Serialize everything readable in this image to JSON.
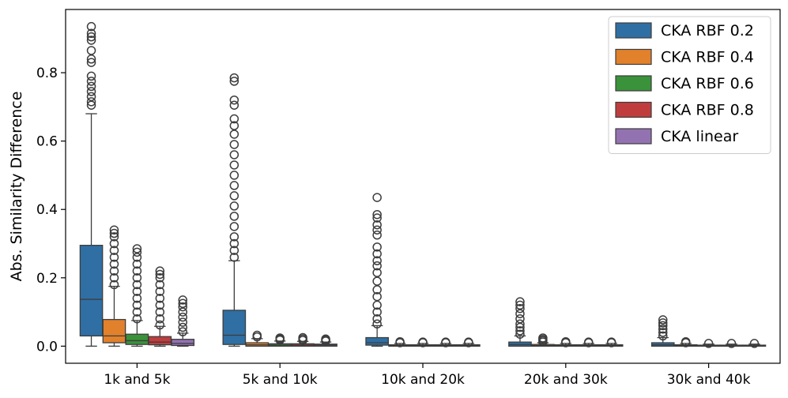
{
  "chart_data": {
    "type": "boxplot",
    "title": "",
    "xlabel": "",
    "ylabel": "Abs. Similarity Difference",
    "ylim": [
      -0.05,
      0.985
    ],
    "yticks": [
      0.0,
      0.2,
      0.4,
      0.6,
      0.8
    ],
    "ytick_labels": [
      "0.0",
      "0.2",
      "0.4",
      "0.6",
      "0.8"
    ],
    "categories": [
      "1k and 5k",
      "5k and 10k",
      "10k and 20k",
      "20k and 30k",
      "30k and 40k"
    ],
    "legend_position": "top-right",
    "grid": false,
    "series": [
      {
        "name": "CKA RBF 0.2",
        "color": "#2f6fa3",
        "boxes": [
          {
            "q1": 0.03,
            "median": 0.137,
            "q3": 0.295,
            "whisker_low": 0.0,
            "whisker_high": 0.68,
            "outliers": [
              0.705,
              0.715,
              0.73,
              0.745,
              0.76,
              0.775,
              0.79,
              0.83,
              0.84,
              0.865,
              0.895,
              0.905,
              0.915,
              0.935
            ]
          },
          {
            "q1": 0.005,
            "median": 0.032,
            "q3": 0.105,
            "whisker_low": 0.0,
            "whisker_high": 0.25,
            "outliers": [
              0.26,
              0.28,
              0.3,
              0.32,
              0.35,
              0.38,
              0.41,
              0.44,
              0.47,
              0.5,
              0.53,
              0.56,
              0.59,
              0.62,
              0.645,
              0.665,
              0.705,
              0.72,
              0.775,
              0.785
            ]
          },
          {
            "q1": 0.003,
            "median": 0.01,
            "q3": 0.025,
            "whisker_low": 0.0,
            "whisker_high": 0.06,
            "outliers": [
              0.065,
              0.08,
              0.1,
              0.12,
              0.145,
              0.165,
              0.19,
              0.215,
              0.235,
              0.25,
              0.27,
              0.29,
              0.325,
              0.34,
              0.355,
              0.375,
              0.385,
              0.435
            ]
          },
          {
            "q1": 0.0,
            "median": 0.005,
            "q3": 0.012,
            "whisker_low": 0.0,
            "whisker_high": 0.03,
            "outliers": [
              0.035,
              0.045,
              0.055,
              0.065,
              0.08,
              0.095,
              0.11,
              0.12,
              0.13
            ]
          },
          {
            "q1": 0.0,
            "median": 0.004,
            "q3": 0.01,
            "whisker_low": 0.0,
            "whisker_high": 0.025,
            "outliers": [
              0.03,
              0.04,
              0.05,
              0.06,
              0.068,
              0.077
            ]
          }
        ]
      },
      {
        "name": "CKA RBF 0.4",
        "color": "#e1812c",
        "boxes": [
          {
            "q1": 0.01,
            "median": 0.03,
            "q3": 0.078,
            "whisker_low": 0.0,
            "whisker_high": 0.175,
            "outliers": [
              0.18,
              0.2,
              0.22,
              0.24,
              0.26,
              0.28,
              0.3,
              0.32,
              0.33,
              0.34
            ]
          },
          {
            "q1": 0.0,
            "median": 0.004,
            "q3": 0.01,
            "whisker_low": 0.0,
            "whisker_high": 0.022,
            "outliers": [
              0.027,
              0.032
            ]
          },
          {
            "q1": 0.0,
            "median": 0.002,
            "q3": 0.004,
            "whisker_low": 0.0,
            "whisker_high": 0.008,
            "outliers": [
              0.01,
              0.013
            ]
          },
          {
            "q1": 0.0,
            "median": 0.002,
            "q3": 0.005,
            "whisker_low": 0.0,
            "whisker_high": 0.01,
            "outliers": [
              0.012,
              0.016,
              0.02,
              0.024
            ]
          },
          {
            "q1": 0.0,
            "median": 0.002,
            "q3": 0.004,
            "whisker_low": 0.0,
            "whisker_high": 0.008,
            "outliers": [
              0.01,
              0.013
            ]
          }
        ]
      },
      {
        "name": "CKA RBF 0.6",
        "color": "#3a923a",
        "boxes": [
          {
            "q1": 0.005,
            "median": 0.016,
            "q3": 0.035,
            "whisker_low": 0.0,
            "whisker_high": 0.075,
            "outliers": [
              0.08,
              0.1,
              0.12,
              0.14,
              0.16,
              0.18,
              0.2,
              0.22,
              0.24,
              0.26,
              0.275,
              0.285
            ]
          },
          {
            "q1": 0.0,
            "median": 0.003,
            "q3": 0.007,
            "whisker_low": 0.0,
            "whisker_high": 0.015,
            "outliers": [
              0.018,
              0.021,
              0.024
            ]
          },
          {
            "q1": 0.0,
            "median": 0.002,
            "q3": 0.004,
            "whisker_low": 0.0,
            "whisker_high": 0.008,
            "outliers": [
              0.01,
              0.012
            ]
          },
          {
            "q1": 0.0,
            "median": 0.002,
            "q3": 0.004,
            "whisker_low": 0.0,
            "whisker_high": 0.008,
            "outliers": [
              0.01,
              0.013
            ]
          },
          {
            "q1": 0.0,
            "median": 0.001,
            "q3": 0.003,
            "whisker_low": 0.0,
            "whisker_high": 0.006,
            "outliers": [
              0.008
            ]
          }
        ]
      },
      {
        "name": "CKA RBF 0.8",
        "color": "#c03d3e",
        "boxes": [
          {
            "q1": 0.004,
            "median": 0.012,
            "q3": 0.028,
            "whisker_low": 0.0,
            "whisker_high": 0.058,
            "outliers": [
              0.062,
              0.08,
              0.1,
              0.12,
              0.14,
              0.16,
              0.18,
              0.2,
              0.21,
              0.22
            ]
          },
          {
            "q1": 0.0,
            "median": 0.003,
            "q3": 0.007,
            "whisker_low": 0.0,
            "whisker_high": 0.014,
            "outliers": [
              0.017,
              0.021,
              0.025
            ]
          },
          {
            "q1": 0.0,
            "median": 0.002,
            "q3": 0.004,
            "whisker_low": 0.0,
            "whisker_high": 0.008,
            "outliers": [
              0.01,
              0.012
            ]
          },
          {
            "q1": 0.0,
            "median": 0.002,
            "q3": 0.004,
            "whisker_low": 0.0,
            "whisker_high": 0.008,
            "outliers": [
              0.01,
              0.012
            ]
          },
          {
            "q1": 0.0,
            "median": 0.001,
            "q3": 0.003,
            "whisker_low": 0.0,
            "whisker_high": 0.006,
            "outliers": [
              0.008
            ]
          }
        ]
      },
      {
        "name": "CKA linear",
        "color": "#9372b2",
        "boxes": [
          {
            "q1": 0.002,
            "median": 0.008,
            "q3": 0.02,
            "whisker_low": 0.0,
            "whisker_high": 0.038,
            "outliers": [
              0.042,
              0.055,
              0.07,
              0.085,
              0.1,
              0.115,
              0.125,
              0.135
            ]
          },
          {
            "q1": 0.0,
            "median": 0.003,
            "q3": 0.006,
            "whisker_low": 0.0,
            "whisker_high": 0.012,
            "outliers": [
              0.015,
              0.018,
              0.021
            ]
          },
          {
            "q1": 0.0,
            "median": 0.002,
            "q3": 0.004,
            "whisker_low": 0.0,
            "whisker_high": 0.008,
            "outliers": [
              0.01,
              0.012
            ]
          },
          {
            "q1": 0.0,
            "median": 0.002,
            "q3": 0.004,
            "whisker_low": 0.0,
            "whisker_high": 0.008,
            "outliers": [
              0.01,
              0.012
            ]
          },
          {
            "q1": 0.0,
            "median": 0.001,
            "q3": 0.003,
            "whisker_low": 0.0,
            "whisker_high": 0.006,
            "outliers": [
              0.008
            ]
          }
        ]
      }
    ]
  }
}
